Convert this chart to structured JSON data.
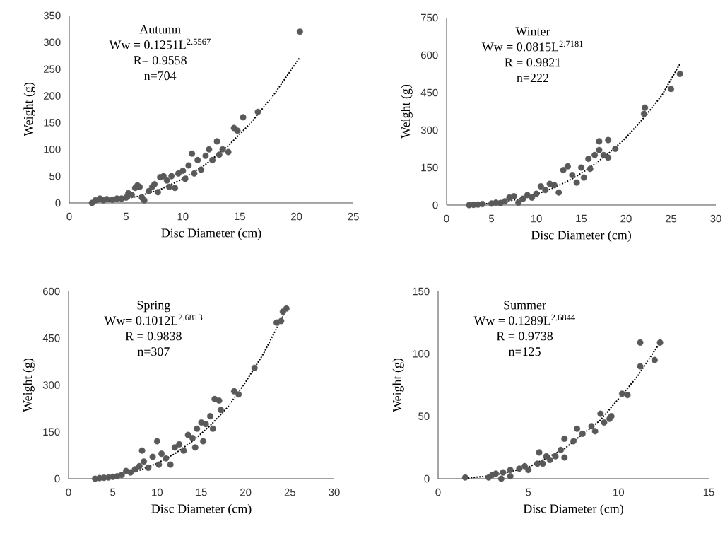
{
  "chart_data": [
    {
      "type": "scatter",
      "title": "Autumn",
      "annotations": [
        "Ww = 0.1251L$^{2.5567}$",
        "R= 0.9558",
        "n=704"
      ],
      "xlabel": "Disc Diameter (cm)",
      "ylabel": "Weight (g)",
      "xlim": [
        0,
        25
      ],
      "xticks": [
        0,
        5,
        10,
        15,
        20,
        25
      ],
      "ylim": [
        0,
        350
      ],
      "yticks": [
        0,
        50,
        100,
        150,
        200,
        250,
        300,
        350
      ],
      "series": [
        {
          "type": "scatter",
          "marker": "circle",
          "color": "#595959",
          "x": [
            2,
            2.3,
            2.7,
            3,
            3.3,
            3.8,
            4.2,
            4.6,
            5,
            5.2,
            5.5,
            5.8,
            6,
            6.2,
            6.4,
            6.6,
            7,
            7.3,
            7.5,
            7.8,
            8,
            8.3,
            8.6,
            8.8,
            9,
            9.3,
            9.6,
            10,
            10.2,
            10.5,
            10.8,
            11,
            11.3,
            11.6,
            12,
            12.3,
            12.6,
            13,
            13.2,
            13.5,
            14,
            14.5,
            14.8,
            15.3,
            16.6,
            20.3
          ],
          "values": [
            0,
            5,
            8,
            5,
            7,
            6,
            8,
            8,
            10,
            18,
            15,
            28,
            33,
            30,
            10,
            5,
            22,
            30,
            35,
            20,
            48,
            50,
            42,
            30,
            50,
            28,
            55,
            60,
            45,
            70,
            92,
            55,
            80,
            62,
            88,
            100,
            80,
            115,
            90,
            100,
            95,
            140,
            135,
            160,
            170,
            320
          ]
        },
        {
          "type": "line",
          "color": "#000000",
          "line_style": "dotted",
          "marker": "none",
          "x": [
            2,
            4,
            6,
            8,
            10,
            12,
            14,
            16,
            18,
            20.3
          ],
          "values": [
            1,
            5,
            12,
            25,
            45,
            72,
            107,
            150,
            202,
            272
          ]
        }
      ]
    },
    {
      "type": "scatter",
      "title": "Winter",
      "annotations": [
        "Ww = 0.0815L$^{2.7181}$",
        "R = 0.9821",
        "n=222"
      ],
      "xlabel": "Disc Diameter (cm)",
      "ylabel": "Weight (g)",
      "xlim": [
        0,
        30
      ],
      "xticks": [
        0,
        5,
        10,
        15,
        20,
        25,
        30
      ],
      "ylim": [
        0,
        750
      ],
      "yticks": [
        0,
        150,
        300,
        450,
        600,
        750
      ],
      "series": [
        {
          "type": "scatter",
          "marker": "circle",
          "color": "#595959",
          "x": [
            2.5,
            3,
            3.5,
            4,
            5,
            5.5,
            6,
            6.5,
            7,
            7.5,
            8,
            8.5,
            9,
            9.5,
            10,
            10.5,
            11,
            11.5,
            12,
            12.5,
            13,
            13.5,
            14,
            14.5,
            15,
            15.3,
            15.8,
            16,
            16.5,
            17,
            17,
            17.5,
            18,
            18,
            18.8,
            22,
            22.1,
            25,
            26
          ],
          "values": [
            0,
            1,
            2,
            4,
            6,
            10,
            8,
            15,
            30,
            35,
            10,
            25,
            40,
            30,
            45,
            75,
            60,
            85,
            80,
            50,
            140,
            155,
            120,
            90,
            150,
            110,
            185,
            145,
            200,
            255,
            220,
            200,
            260,
            190,
            225,
            365,
            390,
            465,
            525
          ]
        },
        {
          "type": "line",
          "color": "#000000",
          "line_style": "dotted",
          "marker": "none",
          "x": [
            2.5,
            5,
            8,
            10,
            12,
            14,
            16,
            18,
            20,
            22,
            24,
            26
          ],
          "values": [
            1,
            7,
            23,
            43,
            70,
            105,
            150,
            205,
            270,
            350,
            440,
            565
          ]
        }
      ]
    },
    {
      "type": "scatter",
      "title": "Spring",
      "annotations": [
        "Ww= 0.1012L$^{2.6813}$",
        "R = 0.9838",
        "n=307"
      ],
      "xlabel": "Disc Diameter (cm)",
      "ylabel": "Weight (g)",
      "xlim": [
        0,
        30
      ],
      "xticks": [
        0,
        5,
        10,
        15,
        20,
        25,
        30
      ],
      "ylim": [
        0,
        600
      ],
      "yticks": [
        0,
        150,
        300,
        450,
        600
      ],
      "series": [
        {
          "type": "scatter",
          "marker": "circle",
          "color": "#595959",
          "x": [
            3,
            3.5,
            4,
            4.5,
            5,
            5.5,
            6,
            6.5,
            7,
            7.5,
            8,
            8.3,
            8.5,
            9,
            9.5,
            10,
            10.2,
            10.5,
            11,
            11.5,
            12,
            12.5,
            13,
            13.5,
            14,
            14.3,
            14.5,
            15,
            15.2,
            15.5,
            16,
            16.3,
            16.5,
            17,
            17.2,
            18.7,
            19.2,
            21,
            23.5,
            24,
            24.2,
            24.6
          ],
          "values": [
            0,
            2,
            3,
            4,
            6,
            8,
            12,
            25,
            20,
            30,
            40,
            90,
            55,
            35,
            70,
            120,
            45,
            80,
            65,
            45,
            100,
            110,
            90,
            140,
            130,
            100,
            160,
            180,
            120,
            175,
            200,
            160,
            255,
            250,
            220,
            280,
            270,
            355,
            500,
            505,
            535,
            545
          ]
        },
        {
          "type": "line",
          "color": "#000000",
          "line_style": "dotted",
          "marker": "none",
          "x": [
            3,
            5,
            8,
            10,
            12,
            14,
            16,
            18,
            20,
            22,
            24.5
          ],
          "values": [
            2,
            8,
            27,
            49,
            80,
            120,
            170,
            230,
            310,
            400,
            537
          ]
        }
      ]
    },
    {
      "type": "scatter",
      "title": "Summer",
      "annotations": [
        "Ww = 0.1289L$^{2.6844}$",
        "R = 0.9738",
        "n=125"
      ],
      "xlabel": "Disc Diameter (cm)",
      "ylabel": "Weight (g)",
      "xlim": [
        0,
        15
      ],
      "xticks": [
        0,
        5,
        10,
        15
      ],
      "ylim": [
        0,
        150
      ],
      "yticks": [
        0,
        50,
        100,
        150
      ],
      "series": [
        {
          "type": "scatter",
          "marker": "circle",
          "color": "#595959",
          "x": [
            1.5,
            2.8,
            3,
            3.2,
            3.5,
            3.6,
            4,
            4,
            4.5,
            4.8,
            5,
            5.5,
            5.6,
            5.8,
            6,
            6.2,
            6.5,
            6.8,
            7,
            7,
            7.5,
            7.7,
            8,
            8.5,
            8.7,
            9,
            9.2,
            9.5,
            9.6,
            10.2,
            10.5,
            11.2,
            11.2,
            12,
            12.3
          ],
          "values": [
            1,
            1,
            3,
            4,
            0,
            5,
            7,
            2,
            8,
            10,
            7,
            12,
            21,
            12,
            18,
            15,
            18,
            23,
            32,
            17,
            30,
            40,
            36,
            42,
            38,
            52,
            45,
            48,
            50,
            68,
            67,
            90,
            109,
            95,
            109
          ]
        },
        {
          "type": "line",
          "color": "#000000",
          "line_style": "dotted",
          "marker": "none",
          "x": [
            1.5,
            3,
            5,
            7,
            9,
            11,
            12.3
          ],
          "values": [
            0.4,
            2.4,
            9.1,
            24,
            47,
            81,
            109
          ]
        }
      ]
    }
  ]
}
